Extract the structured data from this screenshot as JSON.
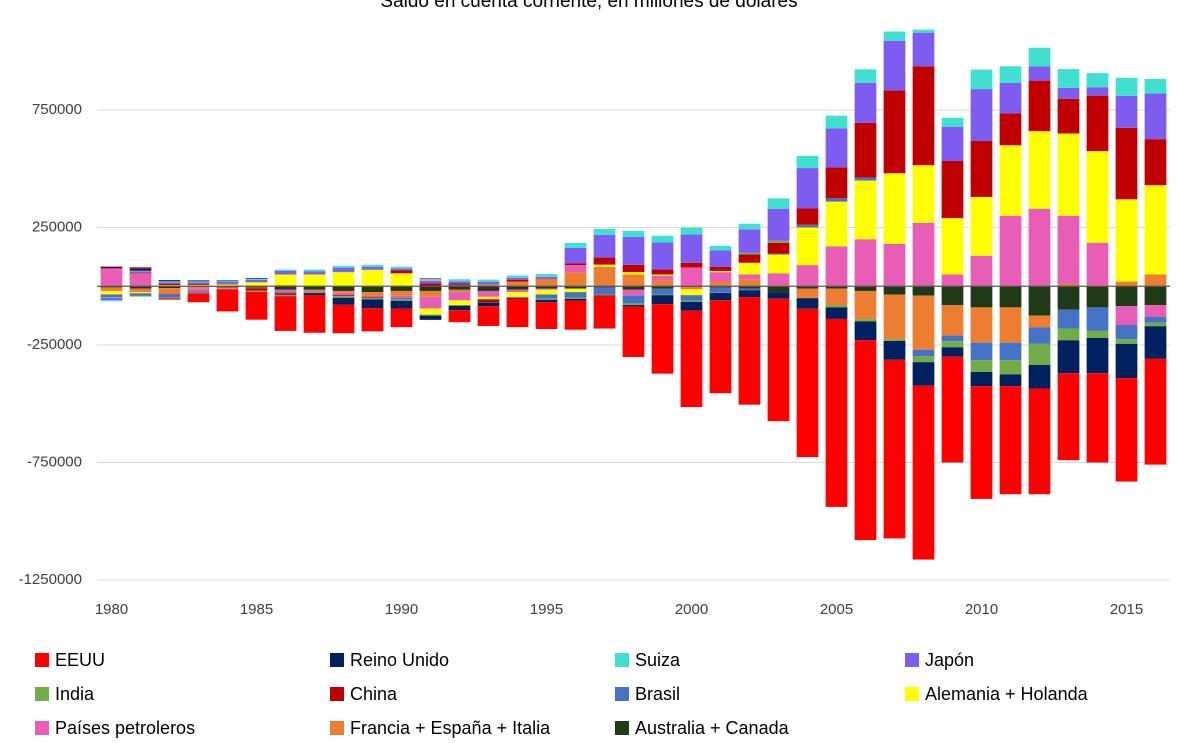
{
  "chart_data": {
    "type": "stacked_bar",
    "title": "Saldo en cuenta corriente, en millones de dólares",
    "x": [
      1980,
      1981,
      1982,
      1983,
      1984,
      1985,
      1986,
      1987,
      1988,
      1989,
      1990,
      1991,
      1992,
      1993,
      1994,
      1995,
      1996,
      1997,
      1998,
      1999,
      2000,
      2001,
      2002,
      2003,
      2004,
      2005,
      2006,
      2007,
      2008,
      2009,
      2010,
      2011,
      2012,
      2013,
      2014,
      2015,
      2016
    ],
    "xlim": [
      1979.5,
      2016.5
    ],
    "xticks": [
      1980,
      1985,
      1990,
      1995,
      2000,
      2005,
      2010,
      2015
    ],
    "ylim": [
      -1250000,
      1150000
    ],
    "yticks": [
      -1250000,
      -750000,
      -250000,
      250000,
      750000
    ],
    "grid": true,
    "legend": "bottom",
    "series": [
      {
        "name": "EEUU",
        "color": "#ff0000",
        "values": [
          2000,
          5000,
          -5000,
          -38000,
          -94000,
          -118000,
          -147000,
          -161000,
          -121000,
          -99000,
          -79000,
          3000,
          -51000,
          -84000,
          -122000,
          -114000,
          -124000,
          -141000,
          -215000,
          -296000,
          -410000,
          -396000,
          -458000,
          -521000,
          -631000,
          -800000,
          -850000,
          -760000,
          -740000,
          -450000,
          -480000,
          -460000,
          -450000,
          -370000,
          -380000,
          -440000,
          -450000
        ]
      },
      {
        "name": "Reino Unido",
        "color": "#002060",
        "values": [
          5000,
          10000,
          5000,
          4000,
          2000,
          3000,
          -1000,
          -8000,
          -30000,
          -37000,
          -33000,
          -18000,
          -19000,
          -16000,
          -3000,
          -10000,
          -7000,
          -1000,
          -6000,
          -38000,
          -37000,
          -30000,
          -28000,
          -28000,
          -45000,
          -49000,
          -80000,
          -80000,
          -100000,
          -40000,
          -60000,
          -50000,
          -100000,
          -140000,
          -150000,
          -146000,
          -139000
        ]
      },
      {
        "name": "Suiza",
        "color": "#40e0d0",
        "values": [
          -5000,
          3000,
          4000,
          4000,
          4000,
          5000,
          6000,
          7000,
          8000,
          8000,
          8000,
          8000,
          10000,
          10000,
          10000,
          12000,
          21000,
          25000,
          26000,
          29000,
          30000,
          20000,
          24000,
          44000,
          52000,
          54000,
          57000,
          39000,
          13000,
          38000,
          83000,
          70000,
          80000,
          80000,
          60000,
          77000,
          62000
        ]
      },
      {
        "name": "Japón",
        "color": "#7f5cf0",
        "values": [
          -10000,
          5000,
          6000,
          8000,
          10000,
          10000,
          15000,
          14000,
          15000,
          12000,
          8000,
          10000,
          8000,
          10000,
          8000,
          8000,
          66000,
          97000,
          119000,
          115000,
          120000,
          70000,
          100000,
          136000,
          172000,
          166000,
          171000,
          211000,
          143000,
          146000,
          221000,
          130000,
          60000,
          46000,
          36000,
          136000,
          194000
        ]
      },
      {
        "name": "India",
        "color": "#70ad47",
        "values": [
          -2000,
          -3000,
          -3000,
          -2000,
          -3000,
          -5000,
          -5000,
          -5000,
          -7000,
          -7000,
          -8000,
          -4000,
          -3000,
          -1000,
          -2000,
          -5000,
          -6000,
          -3000,
          -7000,
          -3000,
          -5000,
          -1000,
          7000,
          9000,
          -1000,
          -10000,
          -10000,
          -8000,
          -25000,
          -26000,
          -50000,
          -60000,
          -90000,
          -50000,
          -30000,
          -20000,
          -15000
        ]
      },
      {
        "name": "China",
        "color": "#c00000",
        "values": [
          2000,
          3000,
          6000,
          4000,
          2000,
          -11000,
          -7000,
          0,
          -4000,
          -4000,
          12000,
          13000,
          6000,
          -12000,
          8000,
          2000,
          7000,
          30000,
          31000,
          21000,
          20000,
          17000,
          35000,
          46000,
          69000,
          132000,
          232000,
          353000,
          421000,
          243000,
          238000,
          136000,
          215000,
          148000,
          236000,
          304000,
          196000
        ]
      },
      {
        "name": "Brasil",
        "color": "#4472c4",
        "values": [
          -12000,
          -11000,
          -16000,
          -7000,
          0,
          -300,
          -5000,
          -1000,
          4000,
          1000,
          -4000,
          -1000,
          6000,
          -1000,
          -2000,
          -18000,
          -23000,
          -30000,
          -33000,
          -25000,
          -24000,
          -23000,
          -8000,
          4000,
          12000,
          14000,
          13000,
          1000,
          -28000,
          -24000,
          -75000,
          -75000,
          -70000,
          -80000,
          -100000,
          -60000,
          -25000
        ]
      },
      {
        "name": "Alemania + Holanda",
        "color": "#ffff00",
        "values": [
          -15000,
          -5000,
          3000,
          5000,
          8000,
          15000,
          45000,
          50000,
          60000,
          70000,
          55000,
          -25000,
          -20000,
          -10000,
          -20000,
          -20000,
          -15000,
          10000,
          10000,
          5000,
          -25000,
          5000,
          50000,
          80000,
          160000,
          190000,
          250000,
          300000,
          245000,
          240000,
          250000,
          300000,
          330000,
          350000,
          390000,
          350000,
          380000
        ]
      },
      {
        "name": "Países petroleros",
        "color": "#e85db5",
        "values": [
          75000,
          55000,
          2000,
          -10000,
          -5000,
          -2000,
          -10000,
          -5000,
          -10000,
          -5000,
          -10000,
          -50000,
          -35000,
          -25000,
          -10000,
          -5000,
          30000,
          2000,
          -25000,
          20000,
          80000,
          40000,
          20000,
          50000,
          90000,
          170000,
          200000,
          180000,
          270000,
          50000,
          130000,
          300000,
          330000,
          290000,
          180000,
          -80000,
          -50000
        ]
      },
      {
        "name": "Francia + España + Italia",
        "color": "#ed7d31",
        "values": [
          -15000,
          -15000,
          -25000,
          -8000,
          0,
          2000,
          5000,
          -3000,
          -8000,
          -15000,
          -20000,
          -25000,
          -10000,
          8000,
          20000,
          30000,
          60000,
          80000,
          50000,
          25000,
          -10000,
          20000,
          30000,
          5000,
          -40000,
          -70000,
          -120000,
          -190000,
          -230000,
          -130000,
          -150000,
          -150000,
          -50000,
          10000,
          5000,
          20000,
          50000
        ]
      },
      {
        "name": "Australia + Canada",
        "color": "#1f3a17",
        "values": [
          -5000,
          -10000,
          -8000,
          -3000,
          -5000,
          -6000,
          -15000,
          -15000,
          -20000,
          -25000,
          -20000,
          -20000,
          -15000,
          -20000,
          -15000,
          -10000,
          -10000,
          -5000,
          -15000,
          -10000,
          -3000,
          -5000,
          -10000,
          -25000,
          -10000,
          -10000,
          -20000,
          -35000,
          -40000,
          -80000,
          -90000,
          -90000,
          -125000,
          -100000,
          -90000,
          -85000,
          -80000
        ]
      }
    ]
  }
}
